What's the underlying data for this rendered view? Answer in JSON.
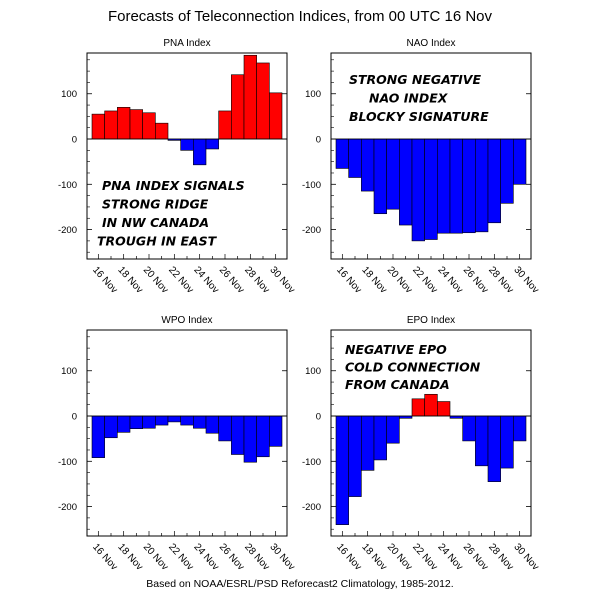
{
  "title": "Forecasts of Teleconnection Indices, from 00 UTC 16 Nov",
  "footer": "Based on NOAA/ESRL/PSD Reforecast2 Climatology, 1985-2012.",
  "colors": {
    "positive": "#ff0000",
    "negative": "#0000ff",
    "axis": "#000000"
  },
  "chart_data": [
    {
      "type": "bar",
      "title": "PNA Index",
      "categories": [
        "16 Nov",
        "17 Nov",
        "18 Nov",
        "19 Nov",
        "20 Nov",
        "21 Nov",
        "22 Nov",
        "23 Nov",
        "24 Nov",
        "25 Nov",
        "26 Nov",
        "27 Nov",
        "28 Nov",
        "29 Nov",
        "30 Nov"
      ],
      "x_tick_labels": [
        "16 Nov",
        "18 Nov",
        "20 Nov",
        "22 Nov",
        "24 Nov",
        "26 Nov",
        "28 Nov",
        "30 Nov"
      ],
      "values": [
        55,
        62,
        70,
        65,
        58,
        35,
        -3,
        -25,
        -57,
        -22,
        62,
        142,
        185,
        168,
        102
      ],
      "ylim": [
        -265,
        190
      ],
      "yticks": [
        100,
        0,
        -100,
        -200
      ],
      "annotations": [
        "PNA INDEX SIGNALS",
        "STRONG RIDGE",
        "IN NW CANADA",
        "TROUGH IN EAST"
      ]
    },
    {
      "type": "bar",
      "title": "NAO Index",
      "categories": [
        "16 Nov",
        "17 Nov",
        "18 Nov",
        "19 Nov",
        "20 Nov",
        "21 Nov",
        "22 Nov",
        "23 Nov",
        "24 Nov",
        "25 Nov",
        "26 Nov",
        "27 Nov",
        "28 Nov",
        "29 Nov",
        "30 Nov"
      ],
      "x_tick_labels": [
        "16 Nov",
        "18 Nov",
        "20 Nov",
        "22 Nov",
        "24 Nov",
        "26 Nov",
        "28 Nov",
        "30 Nov"
      ],
      "values": [
        -65,
        -85,
        -115,
        -165,
        -155,
        -190,
        -225,
        -222,
        -208,
        -208,
        -207,
        -205,
        -185,
        -142,
        -100
      ],
      "ylim": [
        -265,
        190
      ],
      "yticks": [
        100,
        0,
        -100,
        -200
      ],
      "annotations": [
        "STRONG NEGATIVE",
        "NAO INDEX",
        "BLOCKY SIGNATURE"
      ]
    },
    {
      "type": "bar",
      "title": "WPO Index",
      "categories": [
        "16 Nov",
        "17 Nov",
        "18 Nov",
        "19 Nov",
        "20 Nov",
        "21 Nov",
        "22 Nov",
        "23 Nov",
        "24 Nov",
        "25 Nov",
        "26 Nov",
        "27 Nov",
        "28 Nov",
        "29 Nov",
        "30 Nov"
      ],
      "x_tick_labels": [
        "16 Nov",
        "18 Nov",
        "20 Nov",
        "22 Nov",
        "24 Nov",
        "26 Nov",
        "28 Nov",
        "30 Nov"
      ],
      "values": [
        -92,
        -48,
        -36,
        -28,
        -27,
        -20,
        -13,
        -20,
        -27,
        -38,
        -55,
        -85,
        -102,
        -90,
        -67
      ],
      "ylim": [
        -265,
        190
      ],
      "yticks": [
        100,
        0,
        -100,
        -200
      ],
      "annotations": []
    },
    {
      "type": "bar",
      "title": "EPO Index",
      "categories": [
        "16 Nov",
        "17 Nov",
        "18 Nov",
        "19 Nov",
        "20 Nov",
        "21 Nov",
        "22 Nov",
        "23 Nov",
        "24 Nov",
        "25 Nov",
        "26 Nov",
        "27 Nov",
        "28 Nov",
        "29 Nov",
        "30 Nov"
      ],
      "x_tick_labels": [
        "16 Nov",
        "18 Nov",
        "20 Nov",
        "22 Nov",
        "24 Nov",
        "26 Nov",
        "28 Nov",
        "30 Nov"
      ],
      "values": [
        -240,
        -178,
        -120,
        -97,
        -60,
        -5,
        38,
        48,
        32,
        -5,
        -55,
        -110,
        -145,
        -115,
        -55
      ],
      "ylim": [
        -265,
        190
      ],
      "yticks": [
        100,
        0,
        -100,
        -200
      ],
      "annotations": [
        "NEGATIVE EPO",
        "COLD CONNECTION",
        "FROM CANADA"
      ]
    }
  ]
}
